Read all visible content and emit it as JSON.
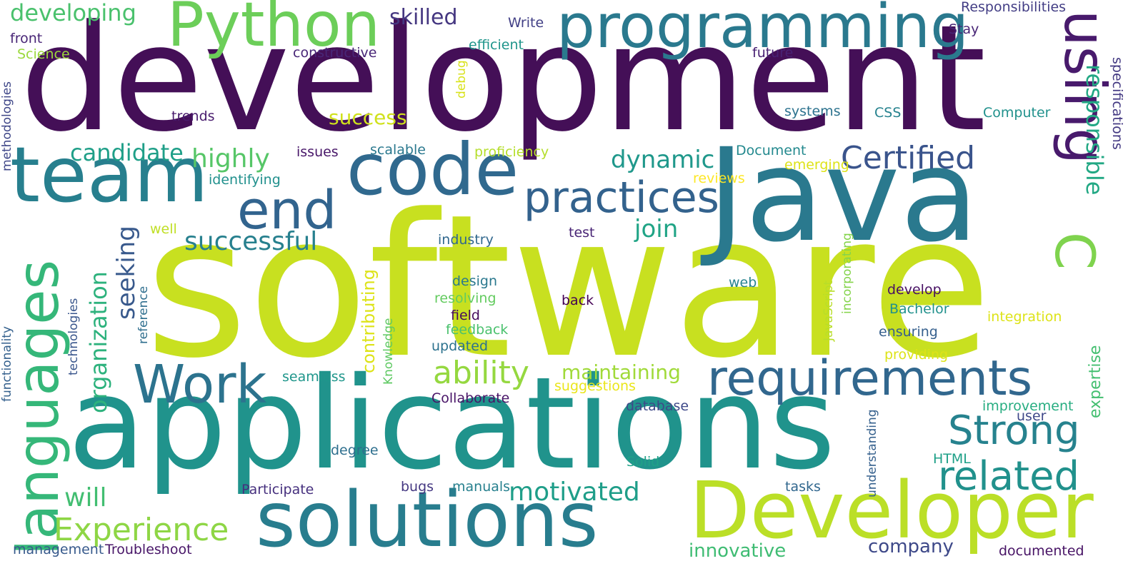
{
  "words": [
    {
      "text": "software",
      "color": "#c8e020"
    },
    {
      "text": "development",
      "color": "#440f57"
    },
    {
      "text": "applications",
      "color": "#20938c"
    },
    {
      "text": "Java",
      "color": "#2a798e"
    },
    {
      "text": "Developer",
      "color": "#bbdf27"
    },
    {
      "text": "solutions",
      "color": "#287d8e"
    },
    {
      "text": "team",
      "color": "#277f8e"
    },
    {
      "text": "programming",
      "color": "#2a798e"
    },
    {
      "text": "using",
      "color": "#481a6c"
    },
    {
      "text": "code",
      "color": "#30698e"
    },
    {
      "text": "Python",
      "color": "#6cce59"
    },
    {
      "text": "languages",
      "color": "#35b779"
    },
    {
      "text": "requirements",
      "color": "#31678e"
    },
    {
      "text": "end",
      "color": "#32648e"
    },
    {
      "text": "Work",
      "color": "#2c738e"
    },
    {
      "text": "practices",
      "color": "#33628d"
    },
    {
      "text": "Strong",
      "color": "#26828e"
    },
    {
      "text": "related",
      "color": "#21918c"
    },
    {
      "text": "ability",
      "color": "#95d840"
    },
    {
      "text": "Experience",
      "color": "#8ed645"
    },
    {
      "text": "Certified",
      "color": "#3a548c"
    },
    {
      "text": "responsible",
      "color": "#22a884"
    },
    {
      "text": "C",
      "color": "#7fd34e"
    },
    {
      "text": "motivated",
      "color": "#1f9e89"
    },
    {
      "text": "successful",
      "color": "#27808e"
    },
    {
      "text": "will",
      "color": "#42be71"
    },
    {
      "text": "highly",
      "color": "#56c667"
    },
    {
      "text": "organization",
      "color": "#2db27d"
    },
    {
      "text": "candidate",
      "color": "#1f9f88"
    },
    {
      "text": "dynamic",
      "color": "#1f988b"
    },
    {
      "text": "join",
      "color": "#20a486"
    },
    {
      "text": "seeking",
      "color": "#38598c"
    },
    {
      "text": "contributing",
      "color": "#dde318"
    },
    {
      "text": "maintaining",
      "color": "#a0da39"
    },
    {
      "text": "expertise",
      "color": "#44bf70"
    },
    {
      "text": "company",
      "color": "#3e4989"
    },
    {
      "text": "innovative",
      "color": "#3fbc73"
    },
    {
      "text": "skilled",
      "color": "#453781"
    },
    {
      "text": "success",
      "color": "#d0e11c"
    },
    {
      "text": "developing",
      "color": "#4ac16d"
    },
    {
      "text": "Responsibilities",
      "color": "#433e85"
    },
    {
      "text": "specifications",
      "color": "#443a83"
    },
    {
      "text": "Stay",
      "color": "#482576"
    },
    {
      "text": "Write",
      "color": "#424086"
    },
    {
      "text": "front",
      "color": "#482576"
    },
    {
      "text": "Science",
      "color": "#9bd93c"
    },
    {
      "text": "methodologies",
      "color": "#3f4788"
    },
    {
      "text": "constructive",
      "color": "#482677"
    },
    {
      "text": "efficient",
      "color": "#1f958b"
    },
    {
      "text": "debug",
      "color": "#d8e219"
    },
    {
      "text": "future",
      "color": "#482173"
    },
    {
      "text": "trends",
      "color": "#481b6d"
    },
    {
      "text": "systems",
      "color": "#2c728e"
    },
    {
      "text": "CSS",
      "color": "#26828e"
    },
    {
      "text": "Computer",
      "color": "#21918c"
    },
    {
      "text": "issues",
      "color": "#481769"
    },
    {
      "text": "scalable",
      "color": "#2a788e"
    },
    {
      "text": "proficiency",
      "color": "#b5de2b"
    },
    {
      "text": "Document",
      "color": "#23898e"
    },
    {
      "text": "emerging",
      "color": "#dde318"
    },
    {
      "text": "identifying",
      "color": "#21908d"
    },
    {
      "text": "reviews",
      "color": "#fde725"
    },
    {
      "text": "well",
      "color": "#c0df25"
    },
    {
      "text": "test",
      "color": "#482475"
    },
    {
      "text": "industry",
      "color": "#31688e"
    },
    {
      "text": "incorporating",
      "color": "#84d44b"
    },
    {
      "text": "JavaScript",
      "color": "#b8de29"
    },
    {
      "text": "reference",
      "color": "#2e6e8e"
    },
    {
      "text": "technologies",
      "color": "#39568c"
    },
    {
      "text": "functionality",
      "color": "#34608d"
    },
    {
      "text": "design",
      "color": "#2a788e"
    },
    {
      "text": "resolving",
      "color": "#63cb5f"
    },
    {
      "text": "back",
      "color": "#440154"
    },
    {
      "text": "web",
      "color": "#26828e"
    },
    {
      "text": "develop",
      "color": "#471063"
    },
    {
      "text": "Bachelor",
      "color": "#21918c"
    },
    {
      "text": "integration",
      "color": "#dde318"
    },
    {
      "text": "field",
      "color": "#460a5d"
    },
    {
      "text": "feedback",
      "color": "#4ac16d"
    },
    {
      "text": "ensuring",
      "color": "#355f8d"
    },
    {
      "text": "Knowledge",
      "color": "#5ec962"
    },
    {
      "text": "updated",
      "color": "#2c728e"
    },
    {
      "text": "providing",
      "color": "#dde318"
    },
    {
      "text": "seamless",
      "color": "#1f968b"
    },
    {
      "text": "suggestions",
      "color": "#eae51a"
    },
    {
      "text": "Collaborate",
      "color": "#481467"
    },
    {
      "text": "database",
      "color": "#3e4989"
    },
    {
      "text": "improvement",
      "color": "#27ad81"
    },
    {
      "text": "user",
      "color": "#3f4889"
    },
    {
      "text": "understanding",
      "color": "#35608d"
    },
    {
      "text": "degree",
      "color": "#2e6f8e"
    },
    {
      "text": "HTML",
      "color": "#1fa088"
    },
    {
      "text": "Solid",
      "color": "#1fa187"
    },
    {
      "text": "Participate",
      "color": "#46307e"
    },
    {
      "text": "manuals",
      "color": "#27808e"
    },
    {
      "text": "bugs",
      "color": "#453882"
    },
    {
      "text": "tasks",
      "color": "#31678e"
    },
    {
      "text": "management",
      "color": "#375a8c"
    },
    {
      "text": "Troubleshoot",
      "color": "#481668"
    },
    {
      "text": "documented",
      "color": "#471365"
    }
  ]
}
